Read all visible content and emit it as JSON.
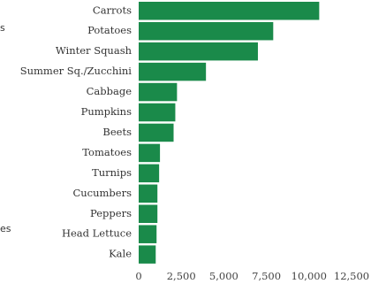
{
  "edge_fragments": [
    "s",
    "es"
  ],
  "chart_data": {
    "type": "bar",
    "orientation": "horizontal",
    "categories": [
      "Carrots",
      "Potatoes",
      "Winter Squash",
      "Summer Sq./Zucchini",
      "Cabbage",
      "Pumpkins",
      "Beets",
      "Tomatoes",
      "Turnips",
      "Cucumbers",
      "Peppers",
      "Head Lettuce",
      "Kale"
    ],
    "values": [
      10600,
      7900,
      7000,
      3950,
      2250,
      2150,
      2050,
      1250,
      1200,
      1100,
      1100,
      1050,
      1000
    ],
    "xlim": [
      0,
      12500
    ],
    "xticks": [
      0,
      2500,
      5000,
      7500,
      10000,
      12500
    ],
    "xtick_labels": [
      "0",
      "2,500",
      "5,000",
      "7,500",
      "10,000",
      "12,500"
    ],
    "bar_color": "#1a8a4a",
    "grid": false,
    "legend": "none"
  }
}
